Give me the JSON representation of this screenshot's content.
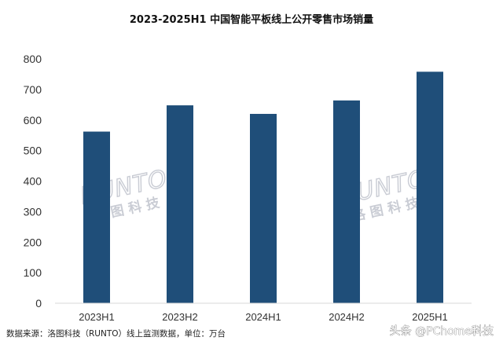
{
  "chart_data": {
    "type": "bar",
    "title": "2023-2025H1 中国智能平板线上公开零售市场销量",
    "categories": [
      "2023H1",
      "2023H2",
      "2024H1",
      "2024H2",
      "2025H1"
    ],
    "values": [
      562,
      648,
      620,
      664,
      758
    ],
    "ylim": [
      0,
      800
    ],
    "yticks": [
      0,
      100,
      200,
      300,
      400,
      500,
      600,
      700,
      800
    ],
    "xlabel": "",
    "ylabel": "",
    "grid": false,
    "legend": "none",
    "bar_color": "#1f4e79"
  },
  "source_note": "数据来源：洛图科技（RUNTO）线上监测数据，单位：万台",
  "watermarks": [
    {
      "en": "RUNTO",
      "cn": "洛图科技"
    },
    {
      "en": "RUNTO",
      "cn": "洛图科技"
    }
  ],
  "corner_watermark": "头条 @PChome科技"
}
